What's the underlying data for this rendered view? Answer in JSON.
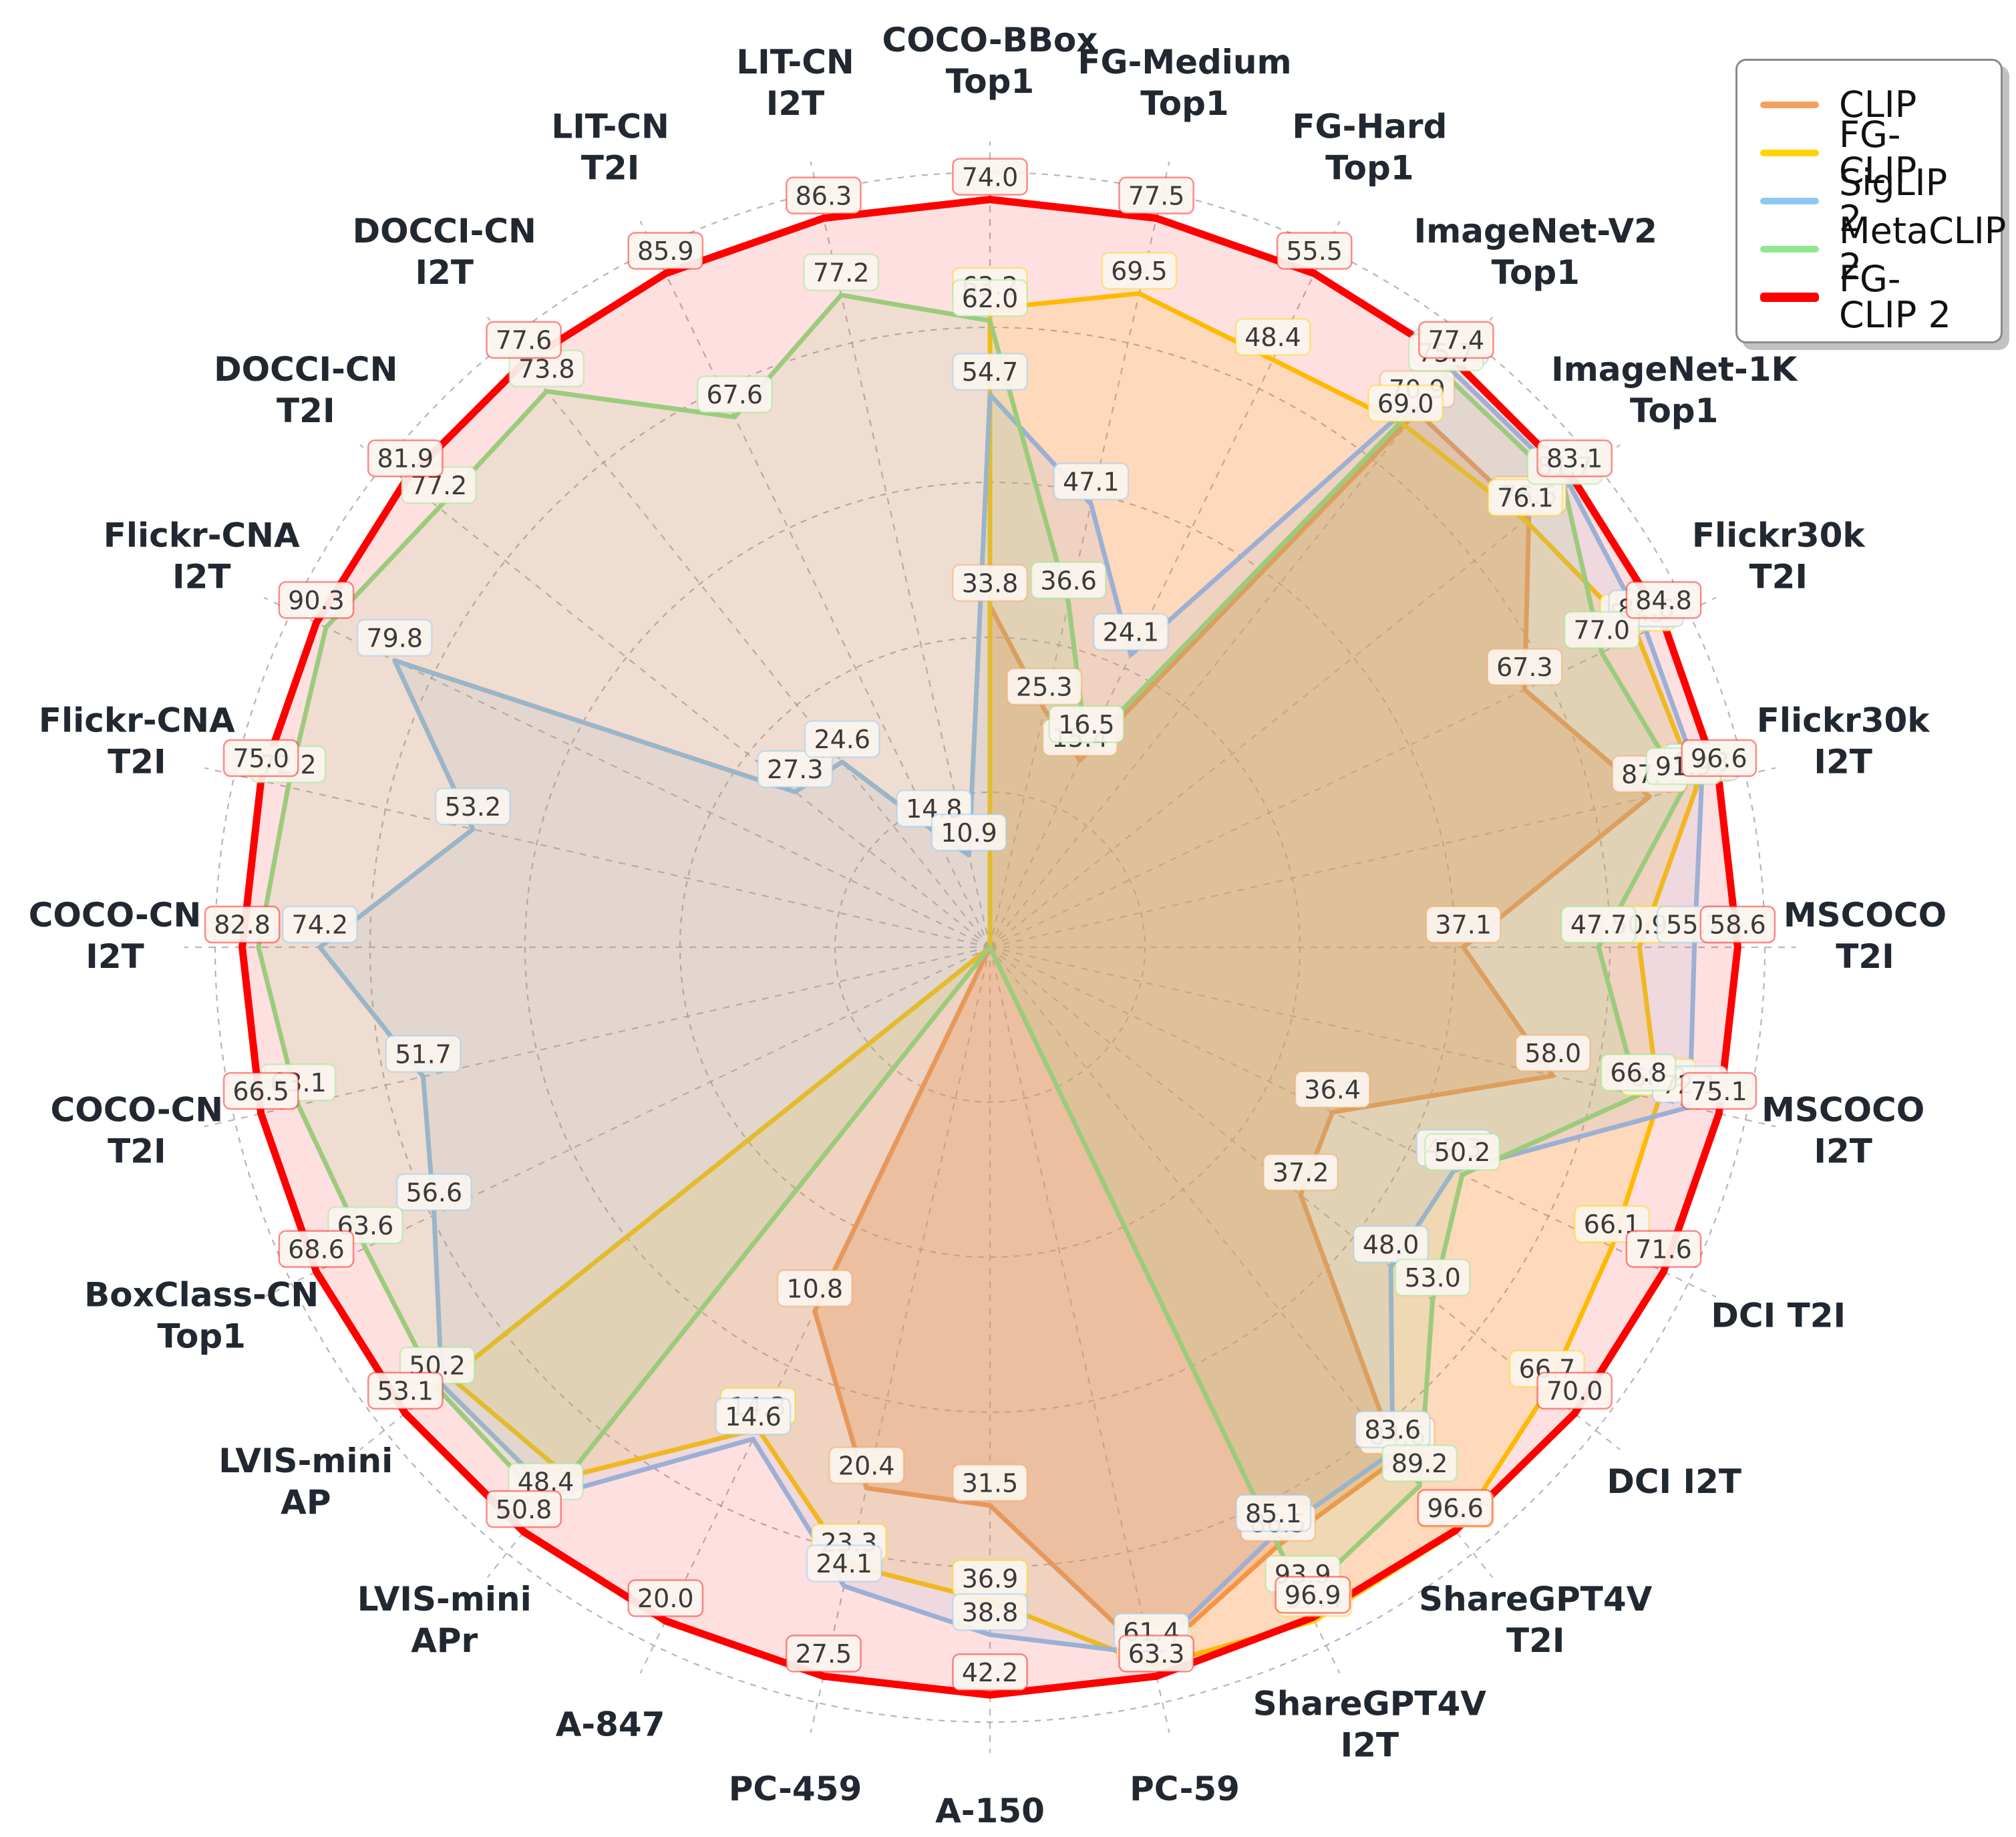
{
  "chart_data": {
    "type": "radar",
    "title": "",
    "legend_position": "top-right",
    "grid": true,
    "center": {
      "x": 1482,
      "y": 1418
    },
    "max_radius": 1160,
    "rings": [
      0.2,
      0.4,
      0.6,
      0.8,
      1.0
    ],
    "axes": [
      {
        "label_lines": [
          "COCO-BBox",
          "Top1"
        ]
      },
      {
        "label_lines": [
          "FG-Medium",
          "Top1"
        ]
      },
      {
        "label_lines": [
          "FG-Hard",
          "Top1"
        ]
      },
      {
        "label_lines": [
          "ImageNet-V2",
          "Top1"
        ]
      },
      {
        "label_lines": [
          "ImageNet-1K",
          "Top1"
        ]
      },
      {
        "label_lines": [
          "Flickr30k",
          "T2I"
        ]
      },
      {
        "label_lines": [
          "Flickr30k",
          "I2T"
        ]
      },
      {
        "label_lines": [
          "MSCOCO",
          "T2I"
        ]
      },
      {
        "label_lines": [
          "MSCOCO",
          "I2T"
        ]
      },
      {
        "label_lines": [
          "DCI  T2I"
        ]
      },
      {
        "label_lines": [
          "DCI  I2T"
        ]
      },
      {
        "label_lines": [
          "ShareGPT4V",
          "T2I"
        ]
      },
      {
        "label_lines": [
          "ShareGPT4V",
          "I2T"
        ]
      },
      {
        "label_lines": [
          "PC-59"
        ]
      },
      {
        "label_lines": [
          "A-150"
        ]
      },
      {
        "label_lines": [
          "PC-459"
        ]
      },
      {
        "label_lines": [
          "A-847"
        ]
      },
      {
        "label_lines": [
          "LVIS-mini",
          "APr"
        ]
      },
      {
        "label_lines": [
          "LVIS-mini",
          "AP"
        ]
      },
      {
        "label_lines": [
          "BoxClass-CN",
          "Top1"
        ]
      },
      {
        "label_lines": [
          "COCO-CN",
          "T2I"
        ]
      },
      {
        "label_lines": [
          "COCO-CN",
          "I2T"
        ]
      },
      {
        "label_lines": [
          "Flickr-CNA",
          "T2I"
        ]
      },
      {
        "label_lines": [
          "Flickr-CNA",
          "I2T"
        ]
      },
      {
        "label_lines": [
          "DOCCI-CN",
          "T2I"
        ]
      },
      {
        "label_lines": [
          "DOCCI-CN",
          "I2T"
        ]
      },
      {
        "label_lines": [
          "LIT-CN",
          "T2I"
        ]
      },
      {
        "label_lines": [
          "LIT-CN",
          "I2T"
        ]
      }
    ],
    "series": [
      {
        "name": "CLIP",
        "color": "#F2A15F",
        "line_width": 7,
        "fill_opacity": 0.32,
        "values": [
          33.8,
          25.3,
          15.4,
          70.9,
          76.6,
          67.3,
          87.4,
          37.1,
          58.0,
          36.4,
          37.2,
          84.6,
          86.5,
          61.8,
          31.5,
          20.4,
          10.8,
          null,
          null,
          null,
          null,
          null,
          null,
          null,
          null,
          null,
          null,
          null
        ],
        "hidden_labels": [
          13
        ]
      },
      {
        "name": "FG-CLIP",
        "color": "#FFD400",
        "line_width": 7,
        "fill_opacity": 0.16,
        "values": [
          63.2,
          69.5,
          48.4,
          69.0,
          76.1,
          81.5,
          93.7,
          50.9,
          68.9,
          66.1,
          66.7,
          96.8,
          97.4,
          62.4,
          36.9,
          23.3,
          14.3,
          46.0,
          49.0,
          null,
          null,
          null,
          null,
          null,
          null,
          null,
          null,
          null
        ],
        "hidden_labels": [
          17,
          18
        ]
      },
      {
        "name": "SigLIP 2",
        "color": "#8EC9F2",
        "line_width": 7,
        "fill_opacity": 0.16,
        "values": [
          54.7,
          47.1,
          24.1,
          76.5,
          82.4,
          82.6,
          94.3,
          55.2,
          72.1,
          49.3,
          48.0,
          83.6,
          85.1,
          61.4,
          38.8,
          24.1,
          14.6,
          47.6,
          49.8,
          56.6,
          51.7,
          74.2,
          53.2,
          79.8,
          27.3,
          24.6,
          14.8,
          10.9
        ],
        "hidden_labels": [
          4,
          17,
          18
        ]
      },
      {
        "name": "MetaCLIP 2",
        "color": "#8FE88F",
        "line_width": 7,
        "fill_opacity": 0.15,
        "values": [
          62.0,
          36.6,
          16.5,
          75.7,
          81.7,
          77.0,
          91.9,
          47.7,
          66.8,
          50.2,
          53.0,
          89.2,
          93.9,
          null,
          null,
          null,
          null,
          48.4,
          50.2,
          63.6,
          63.1,
          81.0,
          72.2,
          89.0,
          77.2,
          73.8,
          67.6,
          77.2
        ],
        "hidden_labels": [
          21,
          23
        ]
      },
      {
        "name": "FG-CLIP 2",
        "color": "#FF0000",
        "line_width": 11,
        "fill_opacity": 0.12,
        "values": [
          74.0,
          77.5,
          55.5,
          77.4,
          83.1,
          84.8,
          96.6,
          58.6,
          75.1,
          71.6,
          70.0,
          96.6,
          96.9,
          63.3,
          42.2,
          27.5,
          20.0,
          50.8,
          53.1,
          68.6,
          66.5,
          82.8,
          75.0,
          90.3,
          81.9,
          77.6,
          85.9,
          86.3
        ],
        "hidden_labels": []
      }
    ]
  }
}
